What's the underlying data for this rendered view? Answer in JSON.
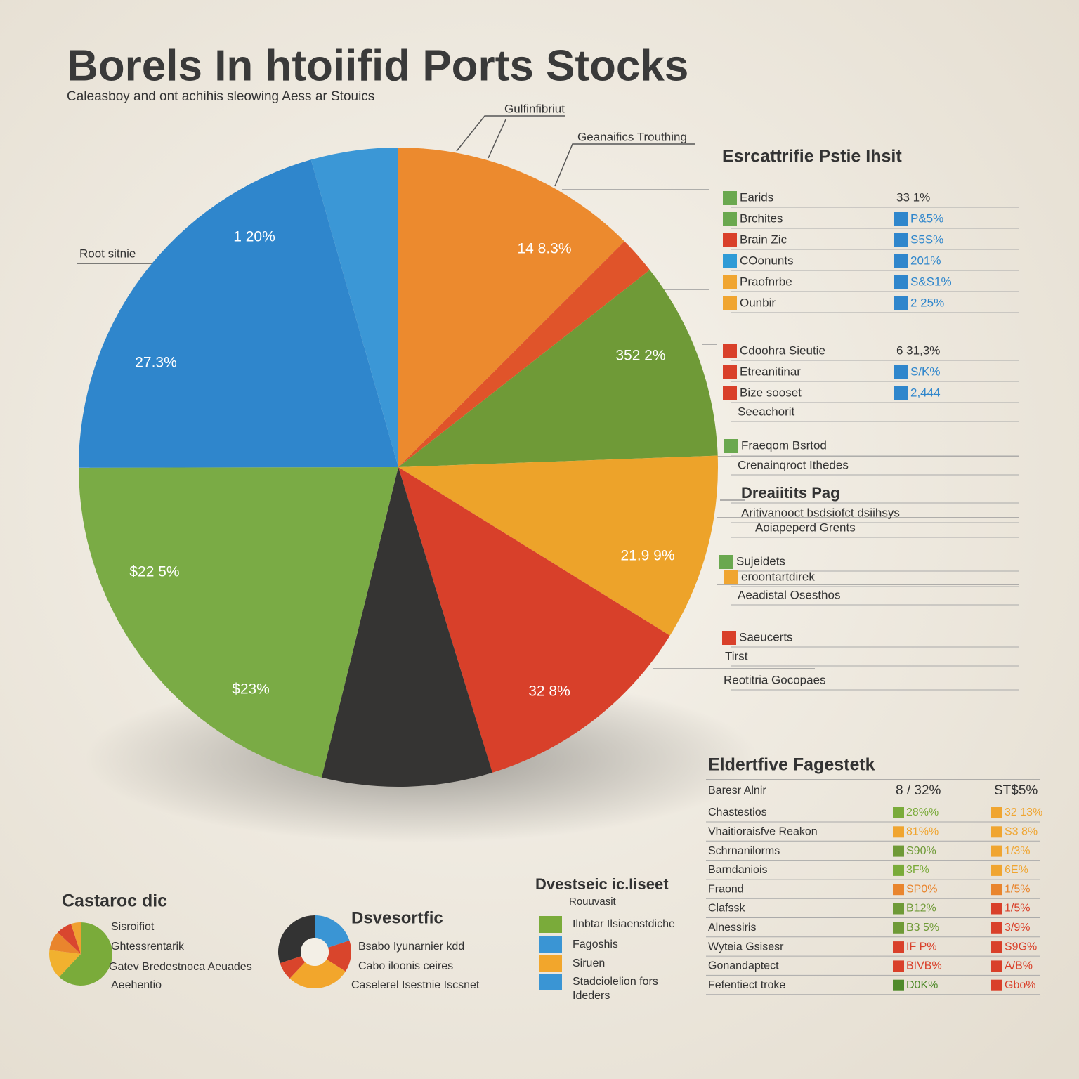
{
  "header": {
    "title": "Borels In htoiifid Ports Stocks",
    "subtitle": "Caleasboy and ont achihis sleowing Aess ar Stouics"
  },
  "chart_data": [
    {
      "type": "pie",
      "categories": [
        null,
        null,
        null,
        null,
        null,
        null,
        null,
        null,
        null
      ],
      "values": [
        12.5,
        1.9,
        10,
        9.4,
        11.4,
        8.6,
        21.1,
        20.6,
        4.4
      ],
      "colors": [
        "#ec8a2e",
        "#e0542a",
        "#6f9a37",
        "#eda32a",
        "#d8402a",
        "#353433",
        "#7aab45",
        "#2f86cc",
        "#3b97d6"
      ],
      "annotations": [
        "14 8.3%",
        "352 2%",
        "21.9 9%",
        "32 8%",
        "$23%",
        "$22 5%",
        "27.3%",
        "1 20%"
      ]
    },
    {
      "type": "pie",
      "title": "Castaroc dic",
      "categories": [
        null,
        null,
        null,
        null,
        null
      ],
      "values": [
        62,
        15,
        10,
        8,
        5
      ],
      "colors": [
        "#7aab3a",
        "#f1b12f",
        "#e9852d",
        "#d9462f",
        "#f0a030"
      ],
      "annotations": [
        "Sisroifiot",
        "Ghtessrentarik",
        "Gatev Bredestnoca Aeuades",
        "Aeehentio"
      ]
    },
    {
      "type": "donut",
      "title": "Dsvesortfic",
      "categories": [
        null,
        null,
        null,
        null,
        null
      ],
      "values": [
        20,
        14,
        28,
        8,
        30
      ],
      "colors": [
        "#3a95d4",
        "#d9452c",
        "#f2a62c",
        "#d9452c",
        "#333333"
      ],
      "annotations": [
        "Bsabo Iyunarnier kdd",
        "Cabo iloonis ceires",
        "Caselerel Isestnie Iscsnet"
      ]
    }
  ],
  "callouts": [
    "Gulfinfibriut",
    "Geanaifics Trouthing",
    "Root sitnie"
  ],
  "legend_panel": {
    "title": "Esrcattrifie Pstie Ihsit",
    "items": [
      {
        "text": "Earids",
        "color": "#6aa84f",
        "value": "33 1%"
      },
      {
        "text": "Brchites",
        "color": "#6aa84f",
        "value": "P&5%",
        "value_color": "#2f86cc"
      },
      {
        "text": "Brain Zic",
        "color": "#d9402a",
        "value": "S5S%",
        "value_color": "#2f86cc"
      },
      {
        "text": "COonunts",
        "color": "#2f9bd6",
        "value": "201%",
        "value_color": "#2f86cc"
      },
      {
        "text": "Praofnrbe",
        "color": "#f0a530",
        "value": "S&S1%",
        "value_color": "#2f86cc"
      },
      {
        "text": "Ounbir",
        "color": "#f0a530",
        "value": "2 25%",
        "value_color": "#2f86cc"
      },
      {
        "text": "Cdoohra Sieutie",
        "color": "#d9402a",
        "value": "6 31,3%"
      },
      {
        "text": "Etreanitinar",
        "color": "#d9402a",
        "value": "S/K%",
        "value_color": "#2f86cc"
      },
      {
        "text": "Bize sooset",
        "color": "#d9402a",
        "value": "2,444",
        "value_color": "#2f86cc"
      },
      {
        "text": "Seeachorit"
      },
      {
        "text": "Fraeqom Bsrtod",
        "color": "#6aa84f"
      },
      {
        "text": "Crenainqroct Ithedes"
      },
      {
        "text": "Dreaiitits Pag"
      },
      {
        "text": "Aritivanooct bsdsiofct dsiihsys"
      },
      {
        "text": "Aoiapeperd Grents"
      },
      {
        "text": "Sujeidets",
        "color": "#6aa84f"
      },
      {
        "text": "eroontartdirek",
        "color": "#f0a530"
      },
      {
        "text": "Aeadistal Osesthos"
      },
      {
        "text": "Saeucerts",
        "color": "#d9402a"
      },
      {
        "text": "Tirst"
      },
      {
        "text": "Reotitria Gocopaes"
      }
    ]
  },
  "middle_legend": {
    "title": "Dvestseic ic.Iiseet",
    "subtitle": "Rouuvasit",
    "items": [
      {
        "text": "Ilnbtar Ilsiaenstdiche",
        "color": "#7aab3a"
      },
      {
        "text": "Fagoshis",
        "color": "#3a95d4"
      },
      {
        "text": "Siruen",
        "color": "#f2a62c"
      },
      {
        "text": "Stadciolelion fors",
        "color": "#3a95d4"
      },
      {
        "text": "Ideders"
      }
    ]
  },
  "table": {
    "title": "Eldertfive Fagestetk",
    "header": [
      "Baresr Alnir",
      "8 / 32%",
      "ST$5%"
    ],
    "rows": [
      {
        "cells": [
          "Chastestios",
          "28%%",
          "32 13%"
        ],
        "colors": [
          "#7aab3a",
          "#f0a530"
        ]
      },
      {
        "cells": [
          "Vhaitioraisfve Reakon",
          "81%%",
          "S3 8%"
        ],
        "colors": [
          "#f0a530",
          "#f0a530"
        ]
      },
      {
        "cells": [
          "Schrnanilorms",
          "S90%",
          "1/3%"
        ],
        "colors": [
          "#6f9a37",
          "#f0a530"
        ]
      },
      {
        "cells": [
          "Barndaniois",
          "3F%",
          "6E%"
        ],
        "colors": [
          "#7aab3a",
          "#f0a530"
        ]
      },
      {
        "cells": [
          "Fraond",
          "SP0%",
          "1/5%"
        ],
        "colors": [
          "#e9852d",
          "#e9852d"
        ]
      },
      {
        "cells": [
          "Clafssk",
          "B12%",
          "1/5%"
        ],
        "colors": [
          "#6f9a37",
          "#d9402a"
        ]
      },
      {
        "cells": [
          "Alnessiris",
          "B3 5%",
          "3/9%"
        ],
        "colors": [
          "#6f9a37",
          "#d9402a"
        ]
      },
      {
        "cells": [
          "Wyteia Gsisesr",
          "IF P%",
          "S9G%"
        ],
        "colors": [
          "#d9402a",
          "#d9402a"
        ]
      },
      {
        "cells": [
          "Gonandaptect",
          "BIVB%",
          "A/B%"
        ],
        "colors": [
          "#d9402a",
          "#d9402a"
        ]
      },
      {
        "cells": [
          "Fefentiect troke",
          "D0K%",
          "Gbo%"
        ],
        "colors": [
          "#4f8a2a",
          "#d9402a"
        ]
      }
    ]
  }
}
